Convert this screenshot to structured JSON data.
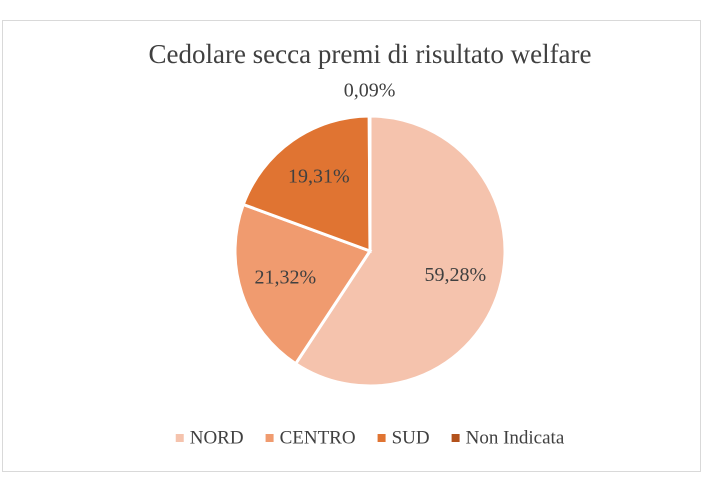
{
  "chart_data": {
    "type": "pie",
    "title": "Cedolare secca premi di risultato welfare",
    "categories": [
      "NORD",
      "CENTRO",
      "SUD",
      "Non Indicata"
    ],
    "values": [
      59.28,
      21.32,
      19.31,
      0.09
    ],
    "value_labels": [
      "59,28%",
      "21,32%",
      "19,31%",
      "0,09%"
    ],
    "colors": [
      "#f5c3ad",
      "#f09b6f",
      "#e07432",
      "#b3521c"
    ],
    "legend": "bottom"
  }
}
